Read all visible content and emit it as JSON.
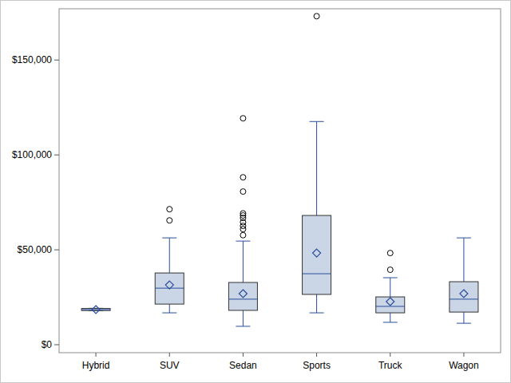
{
  "chart_data": {
    "type": "box",
    "categories": [
      "Hybrid",
      "SUV",
      "Sedan",
      "Sports",
      "Truck",
      "Wagon"
    ],
    "boxes": [
      {
        "whisker_low": 17900,
        "q1": 18000,
        "median": 18500,
        "q3": 19100,
        "whisker_high": 19200,
        "mean": 18500,
        "outliers": []
      },
      {
        "whisker_low": 16800,
        "q1": 21400,
        "median": 29800,
        "q3": 37800,
        "whisker_high": 56300,
        "mean": 31500,
        "outliers": [
          65500,
          71400
        ]
      },
      {
        "whisker_low": 9700,
        "q1": 18100,
        "median": 24000,
        "q3": 32800,
        "whisker_high": 54600,
        "mean": 26900,
        "outliers": [
          57700,
          60900,
          62600,
          64500,
          66800,
          68100,
          69200,
          80700,
          88200,
          119300
        ]
      },
      {
        "whisker_low": 16800,
        "q1": 26500,
        "median": 37400,
        "q3": 68100,
        "whisker_high": 117600,
        "mean": 48300,
        "outliers": [
          173100
        ]
      },
      {
        "whisker_low": 11800,
        "q1": 16800,
        "median": 20200,
        "q3": 25200,
        "whisker_high": 35300,
        "mean": 22700,
        "outliers": [
          39500,
          48300
        ]
      },
      {
        "whisker_low": 11300,
        "q1": 17200,
        "median": 24000,
        "q3": 33200,
        "whisker_high": 56300,
        "mean": 26900,
        "outliers": []
      }
    ],
    "color": "#cad5e5",
    "marker": "diamond",
    "grid": false,
    "ylim": [
      -4200,
      177000
    ],
    "yticks": [
      {
        "value": 0,
        "label": "$0"
      },
      {
        "value": 50000,
        "label": "$50,000"
      },
      {
        "value": 100000,
        "label": "$100,000"
      },
      {
        "value": 150000,
        "label": "$150,000"
      }
    ]
  }
}
